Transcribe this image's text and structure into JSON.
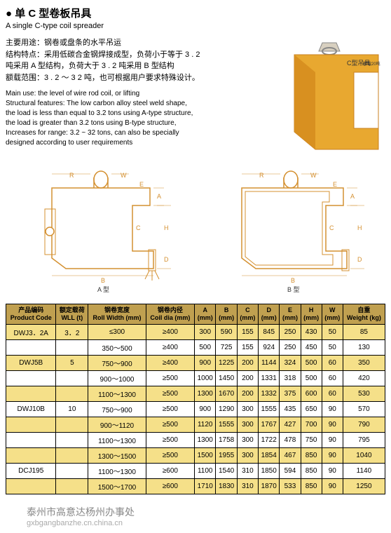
{
  "title_cn": "● 单 C 型卷板吊具",
  "title_en": "A single C-type coil spreader",
  "desc_cn_lines": [
    "主要用途：钢卷或盘条的水平吊运",
    "结构特点：采用低碳合金钢焊接成型，负荷小于等于 3 . 2",
    "吨采用 A 型结构，负荷大于 3 . 2 吨采用 B 型结构",
    "额载范围：3 . 2 ～ 3 2 吨，也可根据用户要求特殊设计。"
  ],
  "desc_en_lines": [
    "Main use: the level of wire rod coil, or lifting",
    "Structural features: The low carbon alloy steel weld shape,",
    "the load is less than equal to 3.2 tons using A-type structure,",
    "the load is greater than 3.2 tons using B-type structure,",
    "Increases for range: 3.2 ~ 32 tons, can also be specially",
    "designed according to user requirements"
  ],
  "product_label": "C型吊具",
  "product_sub": "额载20吨",
  "diagram_a_label": "A 型",
  "diagram_b_label": "B 型",
  "dim_labels": [
    "R",
    "W",
    "E",
    "A",
    "C",
    "H",
    "D",
    "B"
  ],
  "headers": [
    {
      "cn": "产品编码",
      "en": "Product Code"
    },
    {
      "cn": "额定载荷",
      "en": "WLL (t)"
    },
    {
      "cn": "钢卷宽度",
      "en": "Roll Width (mm)"
    },
    {
      "cn": "钢卷内径",
      "en": "Coil dia (mm)"
    },
    {
      "cn": "A",
      "en": "(mm)"
    },
    {
      "cn": "B",
      "en": "(mm)"
    },
    {
      "cn": "C",
      "en": "(mm)"
    },
    {
      "cn": "D",
      "en": "(mm)"
    },
    {
      "cn": "E",
      "en": "(mm)"
    },
    {
      "cn": "H",
      "en": "(mm)"
    },
    {
      "cn": "W",
      "en": "(mm)"
    },
    {
      "cn": "自重",
      "en": "Weight (kg)"
    }
  ],
  "rows": [
    {
      "c": "y",
      "cells": [
        "DWJ3．2A",
        "3．2",
        "≤300",
        "≥400",
        "300",
        "590",
        "155",
        "845",
        "250",
        "430",
        "50",
        "85"
      ]
    },
    {
      "c": "w",
      "cells": [
        "",
        "",
        "350～500",
        "≥400",
        "500",
        "725",
        "155",
        "924",
        "250",
        "450",
        "50",
        "130"
      ]
    },
    {
      "c": "y",
      "cells": [
        "DWJ5B",
        "5",
        "750～900",
        "≥400",
        "900",
        "1225",
        "200",
        "1144",
        "324",
        "500",
        "60",
        "350"
      ]
    },
    {
      "c": "w",
      "cells": [
        "",
        "",
        "900～1000",
        "≥500",
        "1000",
        "1450",
        "200",
        "1331",
        "318",
        "500",
        "60",
        "420"
      ]
    },
    {
      "c": "y",
      "cells": [
        "",
        "",
        "1100～1300",
        "≥500",
        "1300",
        "1670",
        "200",
        "1332",
        "375",
        "600",
        "60",
        "530"
      ]
    },
    {
      "c": "w",
      "cells": [
        "DWJ10B",
        "10",
        "750～900",
        "≥500",
        "900",
        "1290",
        "300",
        "1555",
        "435",
        "650",
        "90",
        "570"
      ]
    },
    {
      "c": "y",
      "cells": [
        "",
        "",
        "900～1120",
        "≥500",
        "1120",
        "1555",
        "300",
        "1767",
        "427",
        "700",
        "90",
        "790"
      ]
    },
    {
      "c": "w",
      "cells": [
        "",
        "",
        "1100～1300",
        "≥500",
        "1300",
        "1758",
        "300",
        "1722",
        "478",
        "750",
        "90",
        "795"
      ]
    },
    {
      "c": "y",
      "cells": [
        "",
        "",
        "1300～1500",
        "≥500",
        "1500",
        "1955",
        "300",
        "1854",
        "467",
        "850",
        "90",
        "1040"
      ]
    },
    {
      "c": "w",
      "cells": [
        "DCJ195",
        "",
        "1100～1300",
        "≥600",
        "1100",
        "1540",
        "310",
        "1850",
        "594",
        "850",
        "90",
        "1140"
      ]
    },
    {
      "c": "y",
      "cells": [
        "",
        "",
        "1500～1700",
        "≥600",
        "1710",
        "1830",
        "310",
        "1870",
        "533",
        "850",
        "90",
        "1250"
      ]
    }
  ],
  "colors": {
    "orange": "#e8a830",
    "orange_dark": "#c88020",
    "diagram": "#d49030",
    "header_bg": "#c0a050",
    "row_yellow": "#f5e089"
  },
  "footer1": "泰州市高意达杨州办事处",
  "footer2": "gxbgangbanzhe.cn.china.cn"
}
